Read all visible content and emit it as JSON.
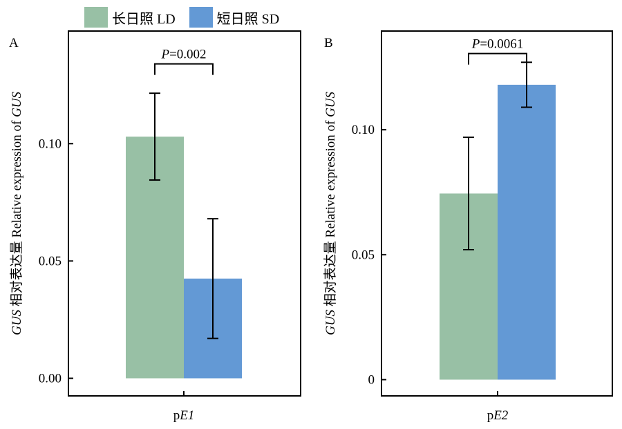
{
  "legend": {
    "items": [
      {
        "label": "长日照 LD",
        "color": "#98c0a5"
      },
      {
        "label": "短日照 SD",
        "color": "#6399d5"
      }
    ]
  },
  "panels": [
    {
      "letter": "A"
    },
    {
      "letter": "B"
    }
  ],
  "chart_data": [
    {
      "type": "bar",
      "panel": "A",
      "categories": [
        "pE1"
      ],
      "category_label": {
        "prefix": "p",
        "italic": "E1"
      },
      "series": [
        {
          "name": "长日照 LD",
          "color": "#98c0a5",
          "values": [
            0.103
          ],
          "error": [
            0.0185
          ]
        },
        {
          "name": "短日照 SD",
          "color": "#6399d5",
          "values": [
            0.0425
          ],
          "error": [
            0.0255
          ]
        }
      ],
      "ylabel": {
        "italic": "GUS",
        "text": " 相对表达量 Relative expression of ",
        "italic2": "GUS"
      },
      "ylim": [
        -0.0075,
        0.148
      ],
      "yticks": [
        0,
        0.05,
        0.1
      ],
      "ytick_labels": [
        "0.00",
        "0.05",
        "0.10"
      ],
      "annotation": {
        "italic": "P",
        "text": "=0.002",
        "left_top": 0.121,
        "right_top": 0.068,
        "bracket_y": 0.134
      },
      "grid": false
    },
    {
      "type": "bar",
      "panel": "B",
      "categories": [
        "pE2"
      ],
      "category_label": {
        "prefix": "p",
        "italic": "E2"
      },
      "series": [
        {
          "name": "长日照 LD",
          "color": "#98c0a5",
          "values": [
            0.0745
          ],
          "error": [
            0.0225
          ]
        },
        {
          "name": "短日照 SD",
          "color": "#6399d5",
          "values": [
            0.118
          ],
          "error": [
            0.009
          ]
        }
      ],
      "ylabel": {
        "italic": "GUS",
        "text": " 相对表达量 Relative expression of ",
        "italic2": "GUS"
      },
      "ylim": [
        -0.0065,
        0.1395
      ],
      "yticks": [
        0,
        0.05,
        0.1
      ],
      "ytick_labels": [
        "0",
        "0.05",
        "0.10"
      ],
      "annotation": {
        "italic": "P",
        "text": "=0.0061",
        "left_top": 0.097,
        "right_top": 0.127,
        "bracket_y": 0.1305
      },
      "grid": false
    }
  ]
}
